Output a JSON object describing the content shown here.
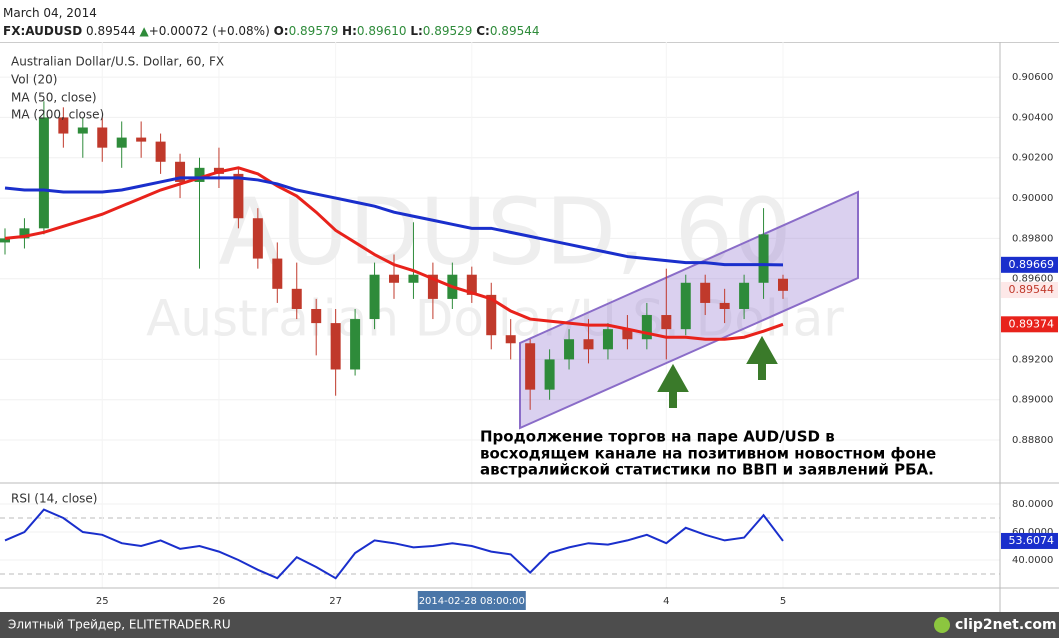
{
  "header": {
    "date": "March 04, 2014",
    "symbol": "FX:AUDUSD",
    "last": "0.89544",
    "change": "+0.00072 (+0.08%)",
    "o_label": "O:",
    "o": "0.89579",
    "h_label": "H:",
    "h": "0.89610",
    "l_label": "L:",
    "l": "0.89529",
    "c_label": "C:",
    "c": "0.89544"
  },
  "chart_data": [
    {
      "type": "candlestick",
      "title": "Australian Dollar/U.S. Dollar, 60, FX",
      "indicators": [
        "Vol (20)"
      ],
      "watermark": [
        "AUDUSD, 60",
        "Australian Dollar/U.S. Dollar"
      ],
      "annotation": [
        "Продолжение торгов на паре AUD/USD в",
        "восходящем канале на позитивном новостном фоне",
        "австралийской статистики по ВВП и заявлений РБА."
      ],
      "up_color": "#2e8b3a",
      "down_color": "#c0392b",
      "open": [
        0.8978,
        0.898,
        0.8985,
        0.904,
        0.9032,
        0.9035,
        0.9025,
        0.903,
        0.9028,
        0.9018,
        0.9008,
        0.9015,
        0.9012,
        0.899,
        0.897,
        0.8955,
        0.8945,
        0.8938,
        0.8915,
        0.894,
        0.8962,
        0.8958,
        0.8962,
        0.895,
        0.8962,
        0.8952,
        0.8932,
        0.8928,
        0.8905,
        0.892,
        0.893,
        0.8925,
        0.8935,
        0.893,
        0.8942,
        0.8935,
        0.8958,
        0.8948,
        0.8945,
        0.8958,
        0.896
      ],
      "high": [
        0.8985,
        0.899,
        0.9048,
        0.9045,
        0.904,
        0.904,
        0.9038,
        0.9038,
        0.9032,
        0.9022,
        0.902,
        0.9025,
        0.9015,
        0.8995,
        0.8978,
        0.8968,
        0.895,
        0.8945,
        0.8945,
        0.8968,
        0.8972,
        0.8988,
        0.8968,
        0.8968,
        0.8966,
        0.8958,
        0.894,
        0.893,
        0.8925,
        0.8935,
        0.894,
        0.8938,
        0.8942,
        0.8948,
        0.8965,
        0.8962,
        0.8962,
        0.8955,
        0.8962,
        0.8995,
        0.8962
      ],
      "low": [
        0.8972,
        0.8975,
        0.8982,
        0.9025,
        0.902,
        0.9018,
        0.9015,
        0.902,
        0.9012,
        0.9,
        0.8965,
        0.9005,
        0.8985,
        0.8965,
        0.8948,
        0.894,
        0.8922,
        0.8902,
        0.8912,
        0.8935,
        0.895,
        0.895,
        0.894,
        0.8945,
        0.8948,
        0.8925,
        0.892,
        0.8895,
        0.89,
        0.8915,
        0.8918,
        0.892,
        0.8925,
        0.8925,
        0.892,
        0.8932,
        0.8942,
        0.8938,
        0.894,
        0.895,
        0.895
      ],
      "close": [
        0.898,
        0.8985,
        0.904,
        0.9032,
        0.9035,
        0.9025,
        0.903,
        0.9028,
        0.9018,
        0.9008,
        0.9015,
        0.9012,
        0.899,
        0.897,
        0.8955,
        0.8945,
        0.8938,
        0.8915,
        0.894,
        0.8962,
        0.8958,
        0.8962,
        0.895,
        0.8962,
        0.8952,
        0.8932,
        0.8928,
        0.8905,
        0.892,
        0.893,
        0.8925,
        0.8935,
        0.893,
        0.8942,
        0.8935,
        0.8958,
        0.8948,
        0.8945,
        0.8958,
        0.8982,
        0.8954
      ],
      "tag": "0.89544",
      "tag_value": 0.89544,
      "series": [
        {
          "name": "MA (50, close)",
          "color": "#e8221b",
          "tag": "0.89374",
          "values": [
            0.898,
            0.8981,
            0.8983,
            0.8986,
            0.8989,
            0.8992,
            0.8996,
            0.9,
            0.9004,
            0.9007,
            0.901,
            0.9013,
            0.9015,
            0.9012,
            0.9006,
            0.9001,
            0.8993,
            0.8984,
            0.8978,
            0.8972,
            0.8967,
            0.8964,
            0.896,
            0.8956,
            0.8953,
            0.895,
            0.8944,
            0.894,
            0.8939,
            0.8938,
            0.8937,
            0.8937,
            0.8935,
            0.8933,
            0.8931,
            0.8931,
            0.893,
            0.893,
            0.8931,
            0.8934,
            0.89374
          ]
        },
        {
          "name": "MA (200, close)",
          "color": "#1a2fcc",
          "tag": "0.89669",
          "values": [
            0.9005,
            0.9004,
            0.9004,
            0.9003,
            0.9003,
            0.9003,
            0.9004,
            0.9006,
            0.9008,
            0.901,
            0.901,
            0.901,
            0.901,
            0.9009,
            0.9007,
            0.9004,
            0.9002,
            0.9,
            0.8998,
            0.8996,
            0.8993,
            0.8991,
            0.8989,
            0.8987,
            0.8985,
            0.8985,
            0.8983,
            0.8981,
            0.8979,
            0.8977,
            0.8975,
            0.8973,
            0.8971,
            0.897,
            0.8969,
            0.8968,
            0.8968,
            0.8967,
            0.8967,
            0.8967,
            0.89669
          ]
        }
      ],
      "ylim": [
        0.88592,
        0.90774
      ],
      "yticks": [
        {
          "value": 0.888,
          "label": "0.88800"
        },
        {
          "value": 0.89,
          "label": "0.89000"
        },
        {
          "value": 0.892,
          "label": "0.89200"
        },
        {
          "value": 0.896,
          "label": "0.89600"
        },
        {
          "value": 0.898,
          "label": "0.89800"
        },
        {
          "value": 0.9,
          "label": "0.90000"
        },
        {
          "value": 0.902,
          "label": "0.90200"
        },
        {
          "value": 0.904,
          "label": "0.90400"
        },
        {
          "value": 0.906,
          "label": "0.90600"
        }
      ],
      "grid": true
    },
    {
      "type": "line",
      "title": "RSI (14, close)",
      "color": "#1a2fcc",
      "levels": [
        30,
        70
      ],
      "categories": [
        null,
        null,
        null,
        null,
        null,
        "25",
        null,
        null,
        null,
        null,
        null,
        "26",
        null,
        null,
        null,
        null,
        null,
        "27",
        null,
        null,
        null,
        null,
        null,
        null,
        "2014-02-28 08:00:00",
        null,
        null,
        null,
        null,
        null,
        null,
        null,
        null,
        null,
        "4",
        null,
        null,
        null,
        null,
        null,
        "5"
      ],
      "values": [
        54,
        60,
        76,
        70,
        60,
        58,
        52,
        50,
        54,
        48,
        50,
        46,
        40,
        33,
        27,
        42,
        35,
        27,
        45,
        54,
        52,
        49,
        50,
        52,
        50,
        46,
        44,
        31,
        45,
        49,
        52,
        51,
        54,
        58,
        52,
        63,
        58,
        54,
        56,
        72,
        53.6074
      ],
      "tag": "53.6074",
      "ylim": [
        20,
        94.3
      ],
      "yticks": [
        {
          "value": 40,
          "label": "40.0000"
        },
        {
          "value": 60,
          "label": "60.0000"
        },
        {
          "value": 80,
          "label": "80.0000"
        }
      ]
    }
  ],
  "footer": {
    "site": "Элитный Трейдер, ELITETRADER.RU",
    "logo": "clip2net.com"
  }
}
